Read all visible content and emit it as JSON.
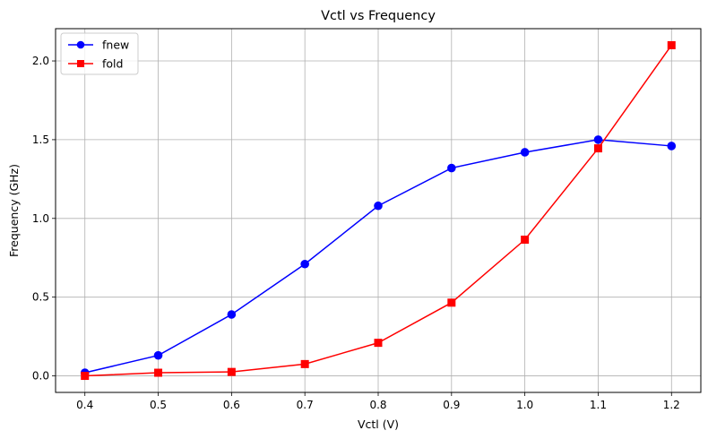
{
  "chart_data": {
    "type": "line",
    "title": "Vctl vs Frequency",
    "xlabel": "Vctl (V)",
    "ylabel": "Frequency (GHz)",
    "x": [
      0.4,
      0.5,
      0.6,
      0.7,
      0.8,
      0.9,
      1.0,
      1.1,
      1.2
    ],
    "xlim": [
      0.36,
      1.24
    ],
    "ylim": [
      -0.105,
      2.205
    ],
    "x_ticks": [
      0.4,
      0.5,
      0.6,
      0.7,
      0.8,
      0.9,
      1.0,
      1.1,
      1.2
    ],
    "x_tick_labels": [
      "0.4",
      "0.5",
      "0.6",
      "0.7",
      "0.8",
      "0.9",
      "1.0",
      "1.1",
      "1.2"
    ],
    "y_ticks": [
      0.0,
      0.5,
      1.0,
      1.5,
      2.0
    ],
    "y_tick_labels": [
      "0.0",
      "0.5",
      "1.0",
      "1.5",
      "2.0"
    ],
    "grid": true,
    "legend_position": "top-left",
    "series": [
      {
        "name": "fnew",
        "values": [
          0.02,
          0.13,
          0.39,
          0.71,
          1.08,
          1.32,
          1.42,
          1.5,
          1.46
        ],
        "color": "#0000ff",
        "marker": "circle"
      },
      {
        "name": "fold",
        "values": [
          0.0,
          0.02,
          0.025,
          0.075,
          0.21,
          0.465,
          0.865,
          1.445,
          2.1
        ],
        "color": "#ff0000",
        "marker": "square"
      }
    ]
  }
}
